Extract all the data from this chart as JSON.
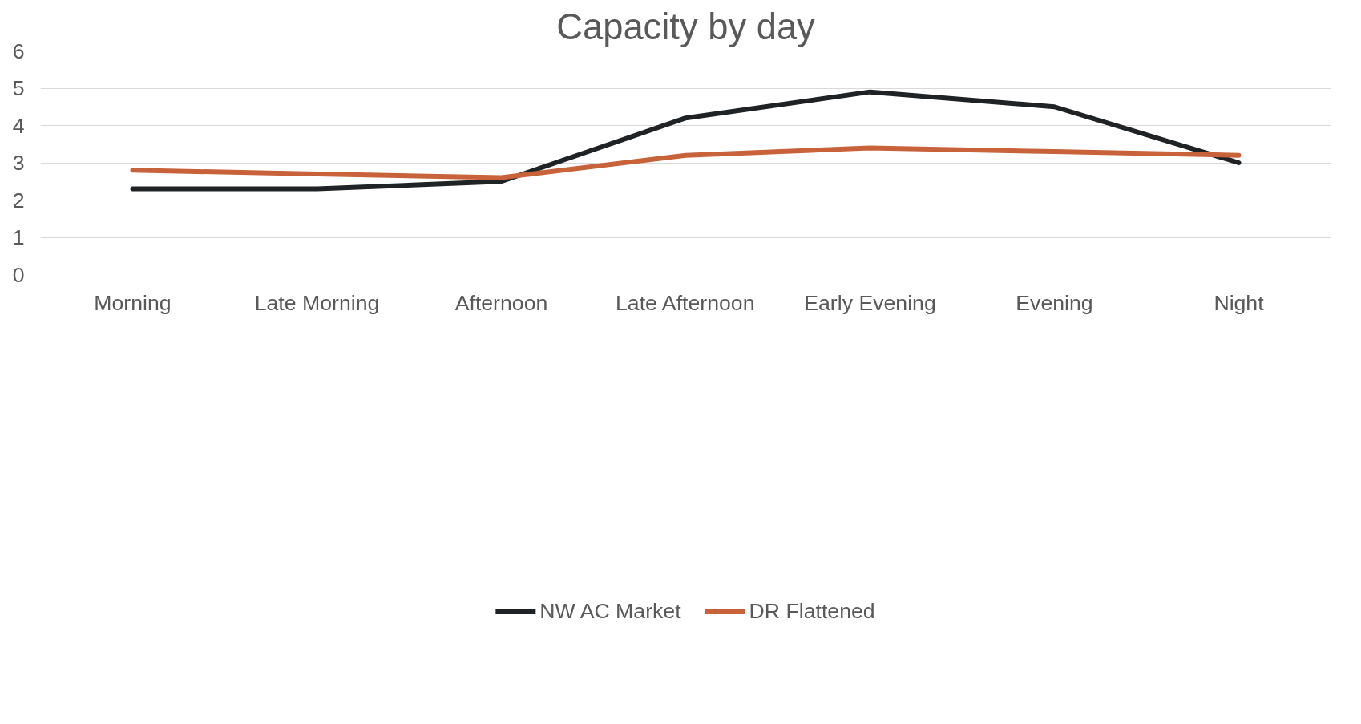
{
  "chart_data": {
    "type": "line",
    "title": "Capacity by day",
    "categories": [
      "Morning",
      "Late Morning",
      "Afternoon",
      "Late Afternoon",
      "Early Evening",
      "Evening",
      "Night"
    ],
    "series": [
      {
        "name": "NW AC Market",
        "color": "#1f2326",
        "values": [
          2.3,
          2.3,
          2.5,
          4.2,
          4.9,
          4.5,
          3.0
        ]
      },
      {
        "name": "DR Flattened",
        "color": "#c8623a",
        "values": [
          2.8,
          2.7,
          2.6,
          3.2,
          3.4,
          3.3,
          3.2
        ]
      }
    ],
    "ylim": [
      0,
      6
    ],
    "yticks": [
      0,
      1,
      2,
      3,
      4,
      5,
      6
    ],
    "grid": "y",
    "legend": "bottom",
    "marker": "none",
    "line_style": "solid"
  }
}
